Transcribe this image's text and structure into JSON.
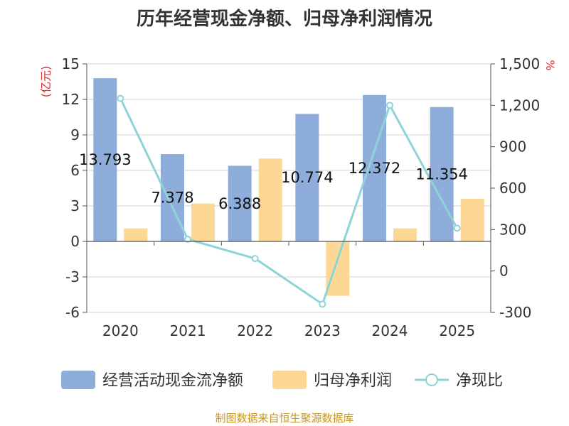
{
  "chart_data": {
    "type": "bar",
    "title": "历年经营现金净额、归母净利润情况",
    "categories": [
      "2020",
      "2021",
      "2022",
      "2023",
      "2024",
      "2025"
    ],
    "y_left": {
      "label": "(亿元)",
      "ticks": [
        "15",
        "12",
        "9",
        "6",
        "3",
        "0",
        "-3",
        "-6"
      ],
      "ylim": [
        -6,
        15
      ]
    },
    "y_right": {
      "label": "%",
      "ticks": [
        "1,500",
        "1,200",
        "900",
        "600",
        "300",
        "0",
        "-300"
      ],
      "ylim": [
        -300,
        1500
      ]
    },
    "series": [
      {
        "name": "经营活动现金流净额",
        "type": "bar",
        "axis": "left",
        "color": "#8eaddb",
        "values": [
          13.793,
          7.378,
          6.388,
          10.774,
          12.372,
          11.354
        ],
        "labels": [
          "13.793",
          "7.378",
          "6.388",
          "10.774",
          "12.372",
          "11.354"
        ]
      },
      {
        "name": "归母净利润",
        "type": "bar",
        "axis": "left",
        "color": "#fdd796",
        "values": [
          1.1,
          3.2,
          7.0,
          -4.6,
          1.1,
          3.6
        ]
      },
      {
        "name": "净现比",
        "type": "line",
        "axis": "right",
        "color": "#8dd3d8",
        "values": [
          1250,
          230,
          90,
          -240,
          1200,
          310
        ]
      }
    ],
    "grid": true,
    "legend_position": "bottom"
  },
  "source_note": "制图数据来自恒生聚源数据库"
}
